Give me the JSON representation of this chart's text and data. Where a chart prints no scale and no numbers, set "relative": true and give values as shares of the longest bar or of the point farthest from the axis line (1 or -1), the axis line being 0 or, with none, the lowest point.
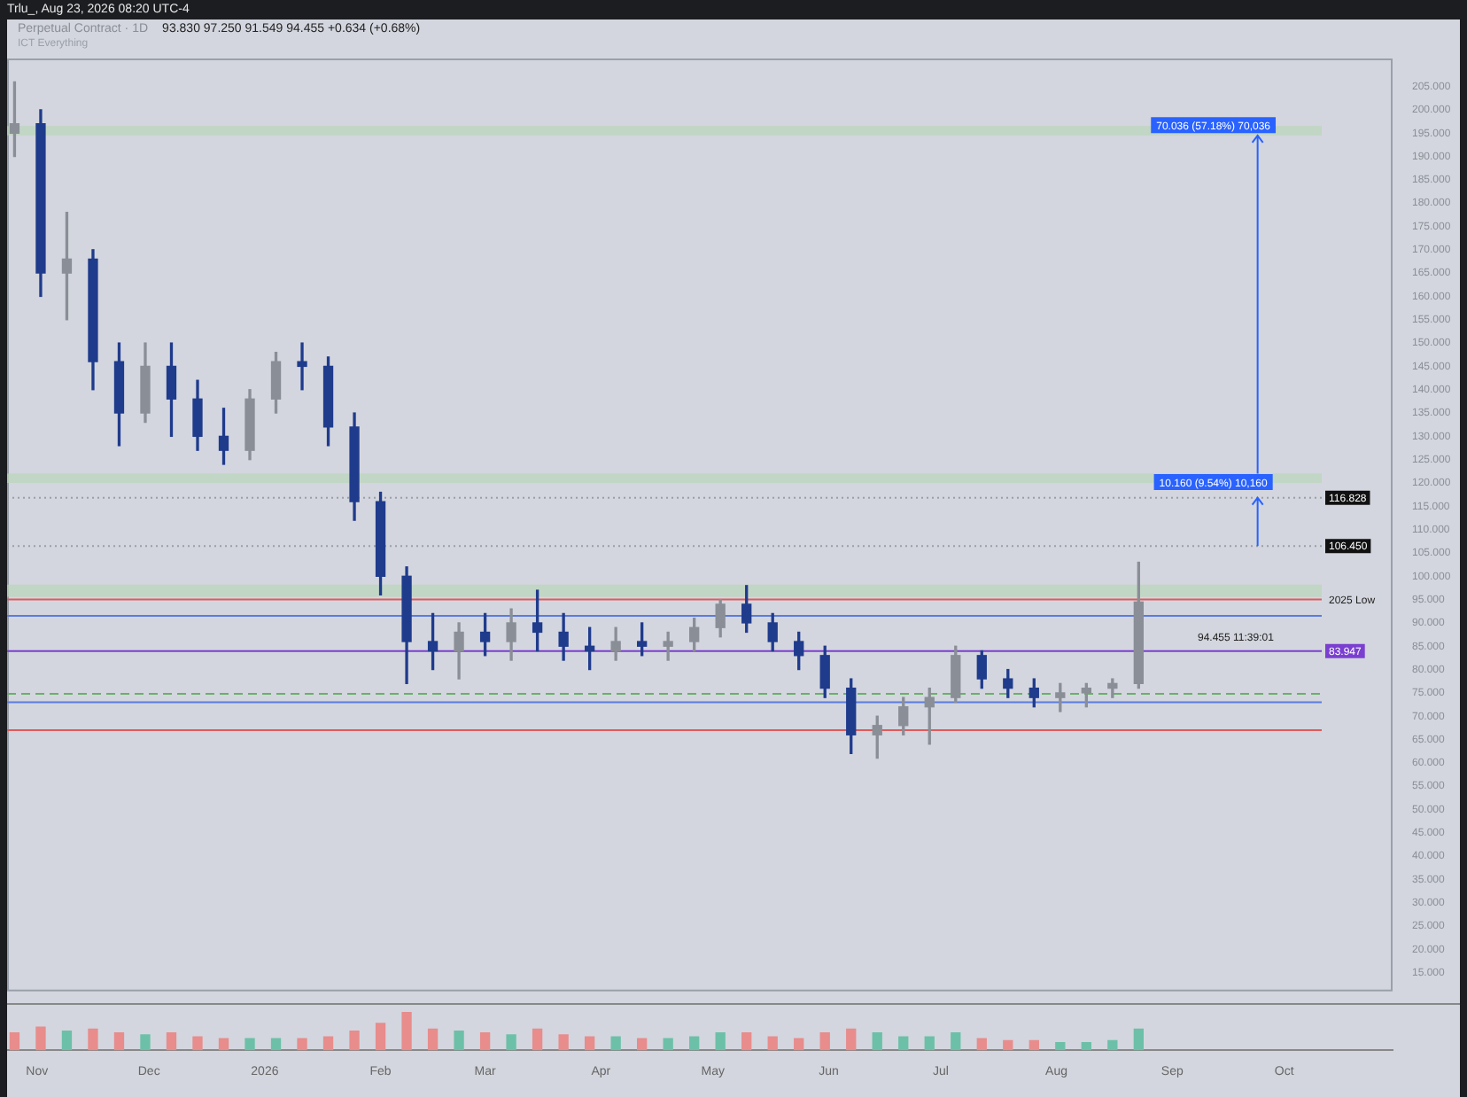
{
  "chart_data": [
    {
      "type": "candlestick",
      "title": "Perpetual Contract · 1D",
      "subtitle": "93.830  97.250  91.549  94.455  +0.634 (+0.68%)",
      "annotations": [
        "Trlu_, Aug 23, 2026 08:20 UTC-4",
        "ICT Everything",
        {
          "text": "70.036 (57.18%) 70,036",
          "x": "2026-09-12",
          "y": 196.5
        },
        {
          "text": "10.160 (9.54%) 10,160",
          "x": "2026-09-12",
          "y": 120
        },
        "94.455 11:39:01"
      ],
      "x": [
        "2025-10-26",
        "2025-11-02",
        "2025-11-09",
        "2025-11-16",
        "2025-11-23",
        "2025-11-30",
        "2025-12-07",
        "2025-12-14",
        "2025-12-21",
        "2025-12-28",
        "2026-01-04",
        "2026-01-11",
        "2026-01-18",
        "2026-01-25",
        "2026-02-01",
        "2026-02-08",
        "2026-02-15",
        "2026-02-22",
        "2026-03-01",
        "2026-03-08",
        "2026-03-15",
        "2026-03-22",
        "2026-03-29",
        "2026-04-05",
        "2026-04-12",
        "2026-04-19",
        "2026-04-26",
        "2026-05-03",
        "2026-05-10",
        "2026-05-17",
        "2026-05-24",
        "2026-05-31",
        "2026-06-07",
        "2026-06-14",
        "2026-06-21",
        "2026-06-28",
        "2026-07-05",
        "2026-07-12",
        "2026-07-19",
        "2026-07-26",
        "2026-08-02",
        "2026-08-09",
        "2026-08-16",
        "2026-08-23"
      ],
      "ohlc": [
        [
          195,
          206,
          190,
          197
        ],
        [
          197,
          200,
          160,
          165
        ],
        [
          165,
          178,
          155,
          168
        ],
        [
          168,
          170,
          140,
          146
        ],
        [
          146,
          150,
          128,
          135
        ],
        [
          135,
          150,
          133,
          145
        ],
        [
          145,
          150,
          130,
          138
        ],
        [
          138,
          142,
          127,
          130
        ],
        [
          130,
          136,
          124,
          127
        ],
        [
          127,
          140,
          125,
          138
        ],
        [
          138,
          148,
          135,
          146
        ],
        [
          146,
          150,
          140,
          145
        ],
        [
          145,
          147,
          128,
          132
        ],
        [
          132,
          135,
          112,
          116
        ],
        [
          116,
          118,
          96,
          100
        ],
        [
          100,
          102,
          77,
          86
        ],
        [
          86,
          92,
          80,
          84
        ],
        [
          84,
          90,
          78,
          88
        ],
        [
          88,
          92,
          83,
          86
        ],
        [
          86,
          93,
          82,
          90
        ],
        [
          90,
          97,
          84,
          88
        ],
        [
          88,
          92,
          82,
          85
        ],
        [
          85,
          89,
          80,
          84
        ],
        [
          84,
          89,
          82,
          86
        ],
        [
          86,
          90,
          83,
          85
        ],
        [
          85,
          88,
          82,
          86
        ],
        [
          86,
          91,
          84,
          89
        ],
        [
          89,
          95,
          87,
          94
        ],
        [
          94,
          98,
          88,
          90
        ],
        [
          90,
          92,
          84,
          86
        ],
        [
          86,
          88,
          80,
          83
        ],
        [
          83,
          85,
          74,
          76
        ],
        [
          76,
          78,
          62,
          66
        ],
        [
          66,
          70,
          61,
          68
        ],
        [
          68,
          74,
          66,
          72
        ],
        [
          72,
          76,
          64,
          74
        ],
        [
          74,
          85,
          73,
          83
        ],
        [
          83,
          84,
          76,
          78
        ],
        [
          78,
          80,
          74,
          76
        ],
        [
          76,
          78,
          72,
          74
        ],
        [
          74,
          77,
          71,
          75
        ],
        [
          75,
          77,
          72,
          76
        ],
        [
          76,
          78,
          74,
          77
        ],
        [
          77,
          103,
          76,
          94.455
        ]
      ],
      "colors": [
        "#8a8e96",
        "#1f3b8c",
        "#8a8e96",
        "#1f3b8c",
        "#1f3b8c",
        "#8a8e96",
        "#1f3b8c",
        "#1f3b8c",
        "#1f3b8c",
        "#8a8e96",
        "#8a8e96",
        "#1f3b8c",
        "#1f3b8c",
        "#1f3b8c",
        "#1f3b8c",
        "#1f3b8c",
        "#1f3b8c",
        "#8a8e96",
        "#1f3b8c",
        "#8a8e96",
        "#1f3b8c",
        "#1f3b8c",
        "#1f3b8c",
        "#8a8e96",
        "#1f3b8c",
        "#8a8e96",
        "#8a8e96",
        "#8a8e96",
        "#1f3b8c",
        "#1f3b8c",
        "#1f3b8c",
        "#1f3b8c",
        "#1f3b8c",
        "#8a8e96",
        "#8a8e96",
        "#8a8e96",
        "#8a8e96",
        "#1f3b8c",
        "#1f3b8c",
        "#1f3b8c",
        "#8a8e96",
        "#8a8e96",
        "#8a8e96",
        "#8a8e96"
      ],
      "xlim": [
        "2025-10-24",
        "2026-10-30"
      ],
      "ylim": [
        11,
        211
      ],
      "yticks": [
        {
          "value": 15,
          "label": "15.000"
        },
        {
          "value": 20,
          "label": "20.000"
        },
        {
          "value": 25,
          "label": "25.000"
        },
        {
          "value": 30,
          "label": "30.000"
        },
        {
          "value": 35,
          "label": "35.000"
        },
        {
          "value": 40,
          "label": "40.000"
        },
        {
          "value": 45,
          "label": "45.000"
        },
        {
          "value": 50,
          "label": "50.000"
        },
        {
          "value": 55,
          "label": "55.000"
        },
        {
          "value": 60,
          "label": "60.000"
        },
        {
          "value": 65,
          "label": "65.000"
        },
        {
          "value": 70,
          "label": "70.000"
        },
        {
          "value": 75,
          "label": "75.000"
        },
        {
          "value": 80,
          "label": "80.000"
        },
        {
          "value": 85,
          "label": "85.000"
        },
        {
          "value": 90,
          "label": "90.000"
        },
        {
          "value": 95,
          "label": "95.000"
        },
        {
          "value": 100,
          "label": "100.000"
        },
        {
          "value": 105,
          "label": "105.000"
        },
        {
          "value": 110,
          "label": "110.000"
        },
        {
          "value": 115,
          "label": "115.000"
        },
        {
          "value": 120,
          "label": "120.000"
        },
        {
          "value": 125,
          "label": "125.000"
        },
        {
          "value": 130,
          "label": "130.000"
        },
        {
          "value": 135,
          "label": "135.000"
        },
        {
          "value": 140,
          "label": "140.000"
        },
        {
          "value": 145,
          "label": "145.000"
        },
        {
          "value": 150,
          "label": "150.000"
        },
        {
          "value": 155,
          "label": "155.000"
        },
        {
          "value": 160,
          "label": "160.000"
        },
        {
          "value": 165,
          "label": "165.000"
        },
        {
          "value": 170,
          "label": "170.000"
        },
        {
          "value": 175,
          "label": "175.000"
        },
        {
          "value": 180,
          "label": "180.000"
        },
        {
          "value": 185,
          "label": "185.000"
        },
        {
          "value": 190,
          "label": "190.000"
        },
        {
          "value": 195,
          "label": "195.000"
        },
        {
          "value": 200,
          "label": "200.000"
        },
        {
          "value": 205,
          "label": "205.000"
        }
      ],
      "ref_lines": [
        {
          "axis": "y",
          "value": 116.828,
          "label": "116.828",
          "color": "#9a9ea6",
          "line_style": "dotted"
        },
        {
          "axis": "y",
          "value": 106.45,
          "label": "106.450",
          "color": "#9a9ea6",
          "line_style": "dotted"
        },
        {
          "axis": "y",
          "value": 95,
          "label": "2025 Low",
          "color": "#e05a5a"
        },
        {
          "axis": "y",
          "value": 91.5,
          "color": "#5b7be0"
        },
        {
          "axis": "y",
          "value": 83.947,
          "label": "83.947",
          "color": "#7a3fd0"
        },
        {
          "axis": "y",
          "value": 73,
          "color": "#5b7be0"
        },
        {
          "axis": "y",
          "value": 74.8,
          "color": "#6ab06a",
          "line_style": "dashed"
        },
        {
          "axis": "y",
          "value": 67,
          "color": "#e05a5a"
        }
      ],
      "bands": [
        {
          "axis": "y",
          "from": 194.5,
          "to": 196.5,
          "color": "#b9d6b9"
        },
        {
          "axis": "y",
          "from": 120,
          "to": 122,
          "color": "#b9d6b9"
        },
        {
          "axis": "y",
          "from": 95.6,
          "to": 98.2,
          "color": "#b9d6b9"
        }
      ],
      "tick_labels": "y",
      "legend": false,
      "grid": false
    },
    {
      "type": "bar",
      "relative": true,
      "x": [
        "2025-10-26",
        "2025-11-02",
        "2025-11-09",
        "2025-11-16",
        "2025-11-23",
        "2025-11-30",
        "2025-12-07",
        "2025-12-14",
        "2025-12-21",
        "2025-12-28",
        "2026-01-04",
        "2026-01-11",
        "2026-01-18",
        "2026-01-25",
        "2026-02-01",
        "2026-02-08",
        "2026-02-15",
        "2026-02-22",
        "2026-03-01",
        "2026-03-08",
        "2026-03-15",
        "2026-03-22",
        "2026-03-29",
        "2026-04-05",
        "2026-04-12",
        "2026-04-19",
        "2026-04-26",
        "2026-05-03",
        "2026-05-10",
        "2026-05-17",
        "2026-05-24",
        "2026-05-31",
        "2026-06-07",
        "2026-06-14",
        "2026-06-21",
        "2026-06-28",
        "2026-07-05",
        "2026-07-12",
        "2026-07-19",
        "2026-07-26",
        "2026-08-02",
        "2026-08-09",
        "2026-08-16",
        "2026-08-23"
      ],
      "values": [
        0.45,
        0.6,
        0.5,
        0.55,
        0.45,
        0.4,
        0.45,
        0.35,
        0.3,
        0.3,
        0.3,
        0.3,
        0.35,
        0.5,
        0.7,
        1,
        0.55,
        0.5,
        0.45,
        0.4,
        0.55,
        0.4,
        0.35,
        0.35,
        0.3,
        0.3,
        0.35,
        0.45,
        0.45,
        0.35,
        0.3,
        0.45,
        0.55,
        0.45,
        0.35,
        0.35,
        0.45,
        0.3,
        0.25,
        0.25,
        0.2,
        0.2,
        0.25,
        0.55
      ],
      "colors": [
        "#e88c8c",
        "#e88c8c",
        "#6cc0a8",
        "#e88c8c",
        "#e88c8c",
        "#6cc0a8",
        "#e88c8c",
        "#e88c8c",
        "#e88c8c",
        "#6cc0a8",
        "#6cc0a8",
        "#e88c8c",
        "#e88c8c",
        "#e88c8c",
        "#e88c8c",
        "#e88c8c",
        "#e88c8c",
        "#6cc0a8",
        "#e88c8c",
        "#6cc0a8",
        "#e88c8c",
        "#e88c8c",
        "#e88c8c",
        "#6cc0a8",
        "#e88c8c",
        "#6cc0a8",
        "#6cc0a8",
        "#6cc0a8",
        "#e88c8c",
        "#e88c8c",
        "#e88c8c",
        "#e88c8c",
        "#e88c8c",
        "#6cc0a8",
        "#6cc0a8",
        "#6cc0a8",
        "#6cc0a8",
        "#e88c8c",
        "#e88c8c",
        "#e88c8c",
        "#6cc0a8",
        "#6cc0a8",
        "#6cc0a8",
        "#6cc0a8"
      ],
      "xlim": [
        "2025-10-24",
        "2026-10-30"
      ],
      "xticks": [
        {
          "value": "2025-11-01",
          "label": "Nov"
        },
        {
          "value": "2025-12-01",
          "label": "Dec"
        },
        {
          "value": "2026-01-01",
          "label": "2026"
        },
        {
          "value": "2026-02-01",
          "label": "Feb"
        },
        {
          "value": "2026-03-01",
          "label": "Mar"
        },
        {
          "value": "2026-04-01",
          "label": "Apr"
        },
        {
          "value": "2026-05-01",
          "label": "May"
        },
        {
          "value": "2026-06-01",
          "label": "Jun"
        },
        {
          "value": "2026-07-01",
          "label": "Jul"
        },
        {
          "value": "2026-08-01",
          "label": "Aug"
        },
        {
          "value": "2026-09-01",
          "label": "Sep"
        },
        {
          "value": "2026-10-01",
          "label": "Oct"
        }
      ],
      "legend": false,
      "grid": false
    }
  ]
}
